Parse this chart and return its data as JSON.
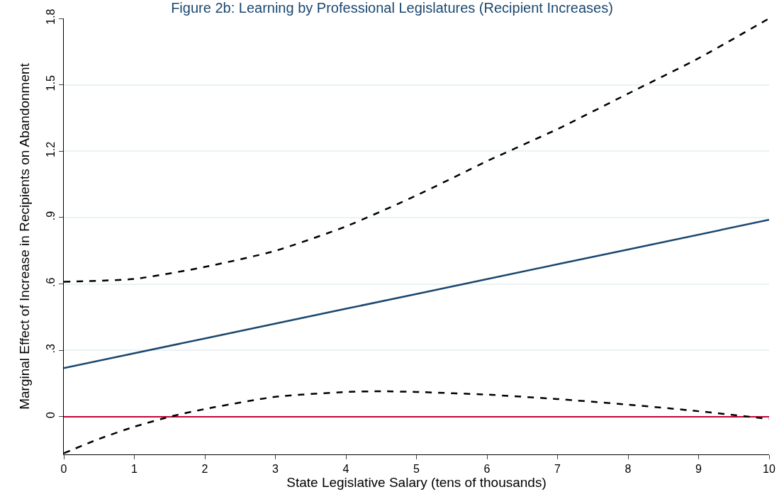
{
  "chart_data": {
    "type": "line",
    "title": "Figure 2b: Learning by Professional Legislatures (Recipient Increases)",
    "xlabel": "State Legislative Salary (tens of thousands)",
    "ylabel": "Marginal Effect of Increase in Recipients on Abandonment",
    "series": [
      {
        "color": "#1a476f",
        "line_style": "solid",
        "x": [
          0,
          2,
          4,
          6,
          8,
          10
        ],
        "values": [
          0.22,
          0.354,
          0.488,
          0.622,
          0.756,
          0.89
        ]
      },
      {
        "color": "#000000",
        "line_style": "dashed",
        "x": [
          0,
          1,
          2,
          3,
          4,
          5,
          6,
          7,
          8,
          9,
          10
        ],
        "values": [
          0.61,
          0.623,
          0.677,
          0.75,
          0.86,
          1.0,
          1.155,
          1.3,
          1.46,
          1.62,
          1.8
        ]
      },
      {
        "color": "#000000",
        "line_style": "dashed",
        "x": [
          0,
          0.5,
          1,
          1.5,
          2,
          3,
          4,
          4.5,
          5,
          6,
          7,
          8,
          9,
          10
        ],
        "values": [
          -0.165,
          -0.1,
          -0.045,
          0.0,
          0.035,
          0.09,
          0.112,
          0.115,
          0.112,
          0.1,
          0.08,
          0.055,
          0.025,
          -0.01
        ]
      }
    ],
    "ref_lines": [
      {
        "axis": "y",
        "value": 0,
        "color": "#c10534"
      }
    ],
    "xlim": [
      0,
      10
    ],
    "xticks": [
      0,
      1,
      2,
      3,
      4,
      5,
      6,
      7,
      8,
      9,
      10
    ],
    "ylim": [
      -0.17,
      1.8
    ],
    "yticks": [
      {
        "value": 0,
        "label": "0"
      },
      {
        "value": 0.3,
        "label": ".3"
      },
      {
        "value": 0.6,
        "label": ".6"
      },
      {
        "value": 0.9,
        "label": ".9"
      },
      {
        "value": 1.2,
        "label": "1.2"
      },
      {
        "value": 1.5,
        "label": "1.5"
      },
      {
        "value": 1.8,
        "label": "1.8"
      }
    ],
    "grid": "y",
    "marker": "none"
  }
}
